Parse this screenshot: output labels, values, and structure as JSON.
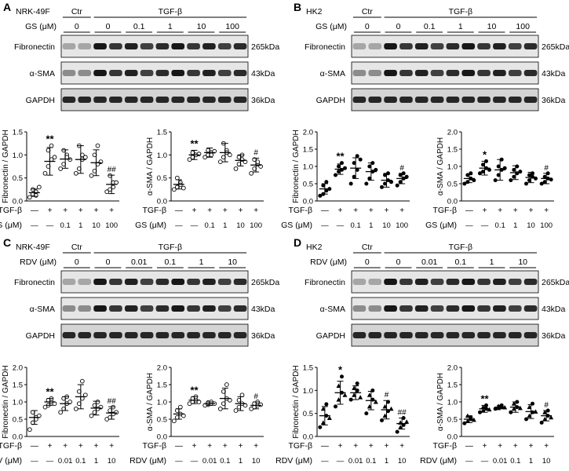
{
  "panels": [
    {
      "id": "A",
      "cell": "NRK-49F",
      "drug": "GS (μM)",
      "treatment_label": "TGF-β",
      "control_label": "Ctr",
      "dose_headers": [
        "0",
        "0",
        "0.1",
        "1",
        "10",
        "100"
      ],
      "blot_rows": [
        {
          "name": "Fibronectin",
          "kda": "265kDa"
        },
        {
          "name": "α-SMA",
          "kda": "43kDa"
        },
        {
          "name": "GAPDH",
          "kda": "36kDa"
        }
      ],
      "tgf_row": [
        "—",
        "+",
        "+",
        "+",
        "+",
        "+"
      ],
      "dose_row": [
        "—",
        "—",
        "0.1",
        "1",
        "10",
        "100"
      ],
      "marker": "open-circle",
      "charts": [
        {
          "ylabel": "Fibronectin / GAPDH",
          "ylim": [
            0,
            1.5
          ],
          "yticks": [
            "0.0",
            "0.5",
            "1.0",
            "1.5"
          ],
          "means": [
            0.18,
            0.86,
            0.91,
            0.9,
            0.83,
            0.36
          ],
          "errs": [
            0.08,
            0.3,
            0.2,
            0.3,
            0.28,
            0.2
          ],
          "annotations": [
            "",
            "**",
            "",
            "",
            "",
            "##"
          ],
          "points": [
            [
              0.08,
              0.15,
              0.2,
              0.25,
              0.12,
              0.3
            ],
            [
              0.6,
              0.75,
              0.9,
              1.1,
              1.2,
              0.95
            ],
            [
              0.7,
              0.8,
              1.0,
              1.1,
              0.95,
              0.9
            ],
            [
              0.6,
              0.7,
              1.0,
              1.2,
              0.9,
              0.95
            ],
            [
              0.55,
              0.65,
              0.8,
              1.0,
              1.2,
              0.85
            ],
            [
              0.2,
              0.25,
              0.4,
              0.55,
              0.3,
              0.4
            ]
          ]
        },
        {
          "ylabel": "α-SMA / GAPDH",
          "ylim": [
            0,
            1.5
          ],
          "yticks": [
            "0.0",
            "0.5",
            "1.0",
            "1.5"
          ],
          "means": [
            0.36,
            1.0,
            1.05,
            1.05,
            0.88,
            0.78
          ],
          "errs": [
            0.1,
            0.1,
            0.1,
            0.2,
            0.12,
            0.15
          ],
          "annotations": [
            "",
            "**",
            "",
            "",
            "",
            "#"
          ],
          "points": [
            [
              0.25,
              0.3,
              0.4,
              0.5,
              0.35,
              0.28
            ],
            [
              0.9,
              0.95,
              1.0,
              1.05,
              1.0,
              1.02
            ],
            [
              0.95,
              1.0,
              1.05,
              1.1,
              1.0,
              1.08
            ],
            [
              0.85,
              0.95,
              1.1,
              1.25,
              1.05,
              1.0
            ],
            [
              0.7,
              0.8,
              0.9,
              0.95,
              1.0,
              0.85
            ],
            [
              0.6,
              0.7,
              0.8,
              0.9,
              0.85,
              0.75
            ]
          ]
        }
      ]
    },
    {
      "id": "B",
      "cell": "HK2",
      "drug": "GS (μM)",
      "treatment_label": "TGF-β",
      "control_label": "Ctr",
      "dose_headers": [
        "0",
        "0",
        "0.1",
        "1",
        "10",
        "100"
      ],
      "blot_rows": [
        {
          "name": "Fibronectin",
          "kda": "265kDa"
        },
        {
          "name": "α-SMA",
          "kda": "43kDa"
        },
        {
          "name": "GAPDH",
          "kda": "36kDa"
        }
      ],
      "tgf_row": [
        "—",
        "+",
        "+",
        "+",
        "+",
        "+"
      ],
      "dose_row": [
        "—",
        "—",
        "0.1",
        "1",
        "10",
        "100"
      ],
      "marker": "filled-circle",
      "charts": [
        {
          "ylabel": "Fibronectin / GAPDH",
          "ylim": [
            0,
            2.0
          ],
          "yticks": [
            "0.0",
            "0.5",
            "1.0",
            "1.5",
            "2.0"
          ],
          "means": [
            0.35,
            0.92,
            0.95,
            0.85,
            0.6,
            0.65
          ],
          "errs": [
            0.15,
            0.15,
            0.3,
            0.25,
            0.2,
            0.15
          ],
          "annotations": [
            "",
            "**",
            "",
            "",
            "",
            "#"
          ],
          "points": [
            [
              0.15,
              0.2,
              0.3,
              0.45,
              0.55,
              0.35
            ],
            [
              0.75,
              0.85,
              0.9,
              1.0,
              1.1,
              0.95
            ],
            [
              0.5,
              0.7,
              0.9,
              1.1,
              1.3,
              1.2
            ],
            [
              0.5,
              0.65,
              0.85,
              1.0,
              1.1,
              0.9
            ],
            [
              0.4,
              0.5,
              0.6,
              0.75,
              0.8,
              0.55
            ],
            [
              0.45,
              0.55,
              0.65,
              0.75,
              0.8,
              0.7
            ]
          ]
        },
        {
          "ylabel": "α-SMA / GAPDH",
          "ylim": [
            0,
            2.0
          ],
          "yticks": [
            "0.0",
            "0.5",
            "1.0",
            "1.5",
            "2.0"
          ],
          "means": [
            0.65,
            0.95,
            0.9,
            0.82,
            0.68,
            0.65
          ],
          "errs": [
            0.12,
            0.2,
            0.3,
            0.2,
            0.15,
            0.15
          ],
          "annotations": [
            "",
            "*",
            "",
            "",
            "",
            "#"
          ],
          "points": [
            [
              0.5,
              0.55,
              0.65,
              0.75,
              0.8,
              0.6
            ],
            [
              0.8,
              0.85,
              0.95,
              1.05,
              1.15,
              0.9
            ],
            [
              0.6,
              0.75,
              0.9,
              1.0,
              1.2,
              0.95
            ],
            [
              0.6,
              0.7,
              0.8,
              0.9,
              1.0,
              0.85
            ],
            [
              0.5,
              0.6,
              0.7,
              0.75,
              0.8,
              0.65
            ],
            [
              0.5,
              0.55,
              0.65,
              0.7,
              0.8,
              0.62
            ]
          ]
        }
      ]
    },
    {
      "id": "C",
      "cell": "NRK-49F",
      "drug": "RDV (μM)",
      "treatment_label": "TGF-β",
      "control_label": "Ctr",
      "dose_headers": [
        "0",
        "0",
        "0.01",
        "0.1",
        "1",
        "10"
      ],
      "blot_rows": [
        {
          "name": "Fibronectin",
          "kda": "265kDa"
        },
        {
          "name": "α-SMA",
          "kda": "43kDa"
        },
        {
          "name": "GAPDH",
          "kda": "36kDa"
        }
      ],
      "tgf_row": [
        "—",
        "+",
        "+",
        "+",
        "+",
        "+"
      ],
      "dose_row": [
        "—",
        "—",
        "0.01",
        "0.1",
        "1",
        "10"
      ],
      "marker": "open-circle",
      "charts": [
        {
          "ylabel": "Fibronectin / GAPDH",
          "ylim": [
            0,
            2.0
          ],
          "yticks": [
            "0.0",
            "0.5",
            "1.0",
            "1.5",
            "2.0"
          ],
          "means": [
            0.55,
            1.0,
            0.95,
            1.15,
            0.82,
            0.68
          ],
          "errs": [
            0.2,
            0.1,
            0.2,
            0.35,
            0.2,
            0.18
          ],
          "annotations": [
            "",
            "**",
            "",
            "",
            "",
            "##"
          ],
          "points": [
            [
              0.2,
              0.4,
              0.55,
              0.7,
              0.5,
              0.6
            ],
            [
              0.85,
              0.9,
              1.0,
              1.05,
              1.1,
              0.95
            ],
            [
              0.7,
              0.8,
              0.95,
              1.1,
              1.15,
              1.0
            ],
            [
              0.8,
              0.95,
              1.1,
              1.3,
              1.6,
              1.2
            ],
            [
              0.6,
              0.7,
              0.8,
              0.9,
              1.0,
              0.85
            ],
            [
              0.5,
              0.55,
              0.65,
              0.75,
              0.85,
              0.7
            ]
          ]
        },
        {
          "ylabel": "α-SMA / GAPDH",
          "ylim": [
            0,
            2.0
          ],
          "yticks": [
            "0.0",
            "0.5",
            "1.0",
            "1.5",
            "2.0"
          ],
          "means": [
            0.65,
            1.05,
            0.95,
            1.1,
            0.95,
            0.9
          ],
          "errs": [
            0.15,
            0.1,
            0.05,
            0.3,
            0.2,
            0.1
          ],
          "annotations": [
            "",
            "**",
            "",
            "",
            "",
            "#"
          ],
          "points": [
            [
              0.45,
              0.55,
              0.65,
              0.75,
              0.85,
              0.6
            ],
            [
              0.95,
              1.0,
              1.05,
              1.1,
              1.15,
              1.0
            ],
            [
              0.9,
              0.92,
              0.95,
              0.98,
              1.0,
              0.95
            ],
            [
              0.8,
              0.95,
              1.1,
              1.3,
              1.5,
              1.05
            ],
            [
              0.75,
              0.85,
              0.95,
              1.05,
              1.2,
              0.9
            ],
            [
              0.8,
              0.85,
              0.9,
              0.95,
              1.0,
              0.92
            ]
          ]
        }
      ]
    },
    {
      "id": "D",
      "cell": "HK2",
      "drug": "RDV (μM)",
      "treatment_label": "TGF-β",
      "control_label": "Ctr",
      "dose_headers": [
        "0",
        "0",
        "0.01",
        "0.1",
        "1",
        "10"
      ],
      "blot_rows": [
        {
          "name": "Fibronectin",
          "kda": "265kDa"
        },
        {
          "name": "α-SMA",
          "kda": "43kDa"
        },
        {
          "name": "GAPDH",
          "kda": "36kDa"
        }
      ],
      "tgf_row": [
        "—",
        "+",
        "+",
        "+",
        "+",
        "+"
      ],
      "dose_row": [
        "—",
        "—",
        "0.01",
        "0.1",
        "1",
        "10"
      ],
      "marker": "filled-mixed",
      "charts": [
        {
          "ylabel": "Fibronectin / GAPDH",
          "ylim": [
            0,
            1.5
          ],
          "yticks": [
            "0.0",
            "0.5",
            "1.0",
            "1.5"
          ],
          "means": [
            0.45,
            0.95,
            0.95,
            0.78,
            0.58,
            0.28
          ],
          "errs": [
            0.2,
            0.25,
            0.15,
            0.2,
            0.2,
            0.12
          ],
          "annotations": [
            "",
            "*",
            "",
            "",
            "#",
            "##"
          ],
          "points": [
            [
              0.2,
              0.3,
              0.45,
              0.6,
              0.7,
              0.4
            ],
            [
              0.65,
              0.8,
              0.95,
              1.1,
              1.3,
              0.9
            ],
            [
              0.8,
              0.9,
              1.0,
              1.05,
              1.15,
              0.85
            ],
            [
              0.5,
              0.65,
              0.8,
              0.9,
              1.0,
              0.75
            ],
            [
              0.35,
              0.45,
              0.55,
              0.65,
              0.75,
              0.6
            ],
            [
              0.1,
              0.2,
              0.25,
              0.3,
              0.4,
              0.32
            ]
          ]
        },
        {
          "ylabel": "α-SMA / GAPDH",
          "ylim": [
            0,
            2.0
          ],
          "yticks": [
            "0.0",
            "0.5",
            "1.0",
            "1.5",
            "2.0"
          ],
          "means": [
            0.5,
            0.8,
            0.85,
            0.85,
            0.72,
            0.6
          ],
          "errs": [
            0.1,
            0.1,
            0.05,
            0.15,
            0.2,
            0.15
          ],
          "annotations": [
            "",
            "**",
            "",
            "",
            "",
            "#"
          ],
          "points": [
            [
              0.38,
              0.45,
              0.5,
              0.6,
              0.55,
              0.48
            ],
            [
              0.7,
              0.75,
              0.8,
              0.85,
              0.9,
              0.78
            ],
            [
              0.8,
              0.82,
              0.85,
              0.88,
              0.9,
              0.84
            ],
            [
              0.7,
              0.8,
              0.85,
              0.95,
              1.0,
              0.82
            ],
            [
              0.5,
              0.6,
              0.7,
              0.85,
              0.95,
              0.72
            ],
            [
              0.4,
              0.5,
              0.6,
              0.7,
              0.75,
              0.55
            ]
          ]
        }
      ]
    }
  ],
  "chart_data": [
    {
      "type": "scatter",
      "panel": "A",
      "title": "",
      "ylabel": "Fibronectin / GAPDH",
      "categories": [
        "Ctr",
        "TGF-β",
        "TGF-β+GS 0.1",
        "TGF-β+GS 1",
        "TGF-β+GS 10",
        "TGF-β+GS 100"
      ],
      "means": [
        0.18,
        0.86,
        0.91,
        0.9,
        0.83,
        0.36
      ],
      "ylim": [
        0,
        1.5
      ]
    },
    {
      "type": "scatter",
      "panel": "A",
      "title": "",
      "ylabel": "α-SMA / GAPDH",
      "categories": [
        "Ctr",
        "TGF-β",
        "TGF-β+GS 0.1",
        "TGF-β+GS 1",
        "TGF-β+GS 10",
        "TGF-β+GS 100"
      ],
      "means": [
        0.36,
        1.0,
        1.05,
        1.05,
        0.88,
        0.78
      ],
      "ylim": [
        0,
        1.5
      ]
    },
    {
      "type": "scatter",
      "panel": "B",
      "title": "",
      "ylabel": "Fibronectin / GAPDH",
      "categories": [
        "Ctr",
        "TGF-β",
        "TGF-β+GS 0.1",
        "TGF-β+GS 1",
        "TGF-β+GS 10",
        "TGF-β+GS 100"
      ],
      "means": [
        0.35,
        0.92,
        0.95,
        0.85,
        0.6,
        0.65
      ],
      "ylim": [
        0,
        2.0
      ]
    },
    {
      "type": "scatter",
      "panel": "B",
      "title": "",
      "ylabel": "α-SMA / GAPDH",
      "categories": [
        "Ctr",
        "TGF-β",
        "TGF-β+GS 0.1",
        "TGF-β+GS 1",
        "TGF-β+GS 10",
        "TGF-β+GS 100"
      ],
      "means": [
        0.65,
        0.95,
        0.9,
        0.82,
        0.68,
        0.65
      ],
      "ylim": [
        0,
        2.0
      ]
    },
    {
      "type": "scatter",
      "panel": "C",
      "title": "",
      "ylabel": "Fibronectin / GAPDH",
      "categories": [
        "Ctr",
        "TGF-β",
        "TGF-β+RDV 0.01",
        "TGF-β+RDV 0.1",
        "TGF-β+RDV 1",
        "TGF-β+RDV 10"
      ],
      "means": [
        0.55,
        1.0,
        0.95,
        1.15,
        0.82,
        0.68
      ],
      "ylim": [
        0,
        2.0
      ]
    },
    {
      "type": "scatter",
      "panel": "C",
      "title": "",
      "ylabel": "α-SMA / GAPDH",
      "categories": [
        "Ctr",
        "TGF-β",
        "TGF-β+RDV 0.01",
        "TGF-β+RDV 0.1",
        "TGF-β+RDV 1",
        "TGF-β+RDV 10"
      ],
      "means": [
        0.65,
        1.05,
        0.95,
        1.1,
        0.95,
        0.9
      ],
      "ylim": [
        0,
        2.0
      ]
    },
    {
      "type": "scatter",
      "panel": "D",
      "title": "",
      "ylabel": "Fibronectin / GAPDH",
      "categories": [
        "Ctr",
        "TGF-β",
        "TGF-β+RDV 0.01",
        "TGF-β+RDV 0.1",
        "TGF-β+RDV 1",
        "TGF-β+RDV 10"
      ],
      "means": [
        0.45,
        0.95,
        0.95,
        0.78,
        0.58,
        0.28
      ],
      "ylim": [
        0,
        1.5
      ]
    },
    {
      "type": "scatter",
      "panel": "D",
      "title": "",
      "ylabel": "α-SMA / GAPDH",
      "categories": [
        "Ctr",
        "TGF-β",
        "TGF-β+RDV 0.01",
        "TGF-β+RDV 0.1",
        "TGF-β+RDV 1",
        "TGF-β+RDV 10"
      ],
      "means": [
        0.5,
        0.8,
        0.85,
        0.85,
        0.72,
        0.6
      ],
      "ylim": [
        0,
        2.0
      ]
    }
  ]
}
